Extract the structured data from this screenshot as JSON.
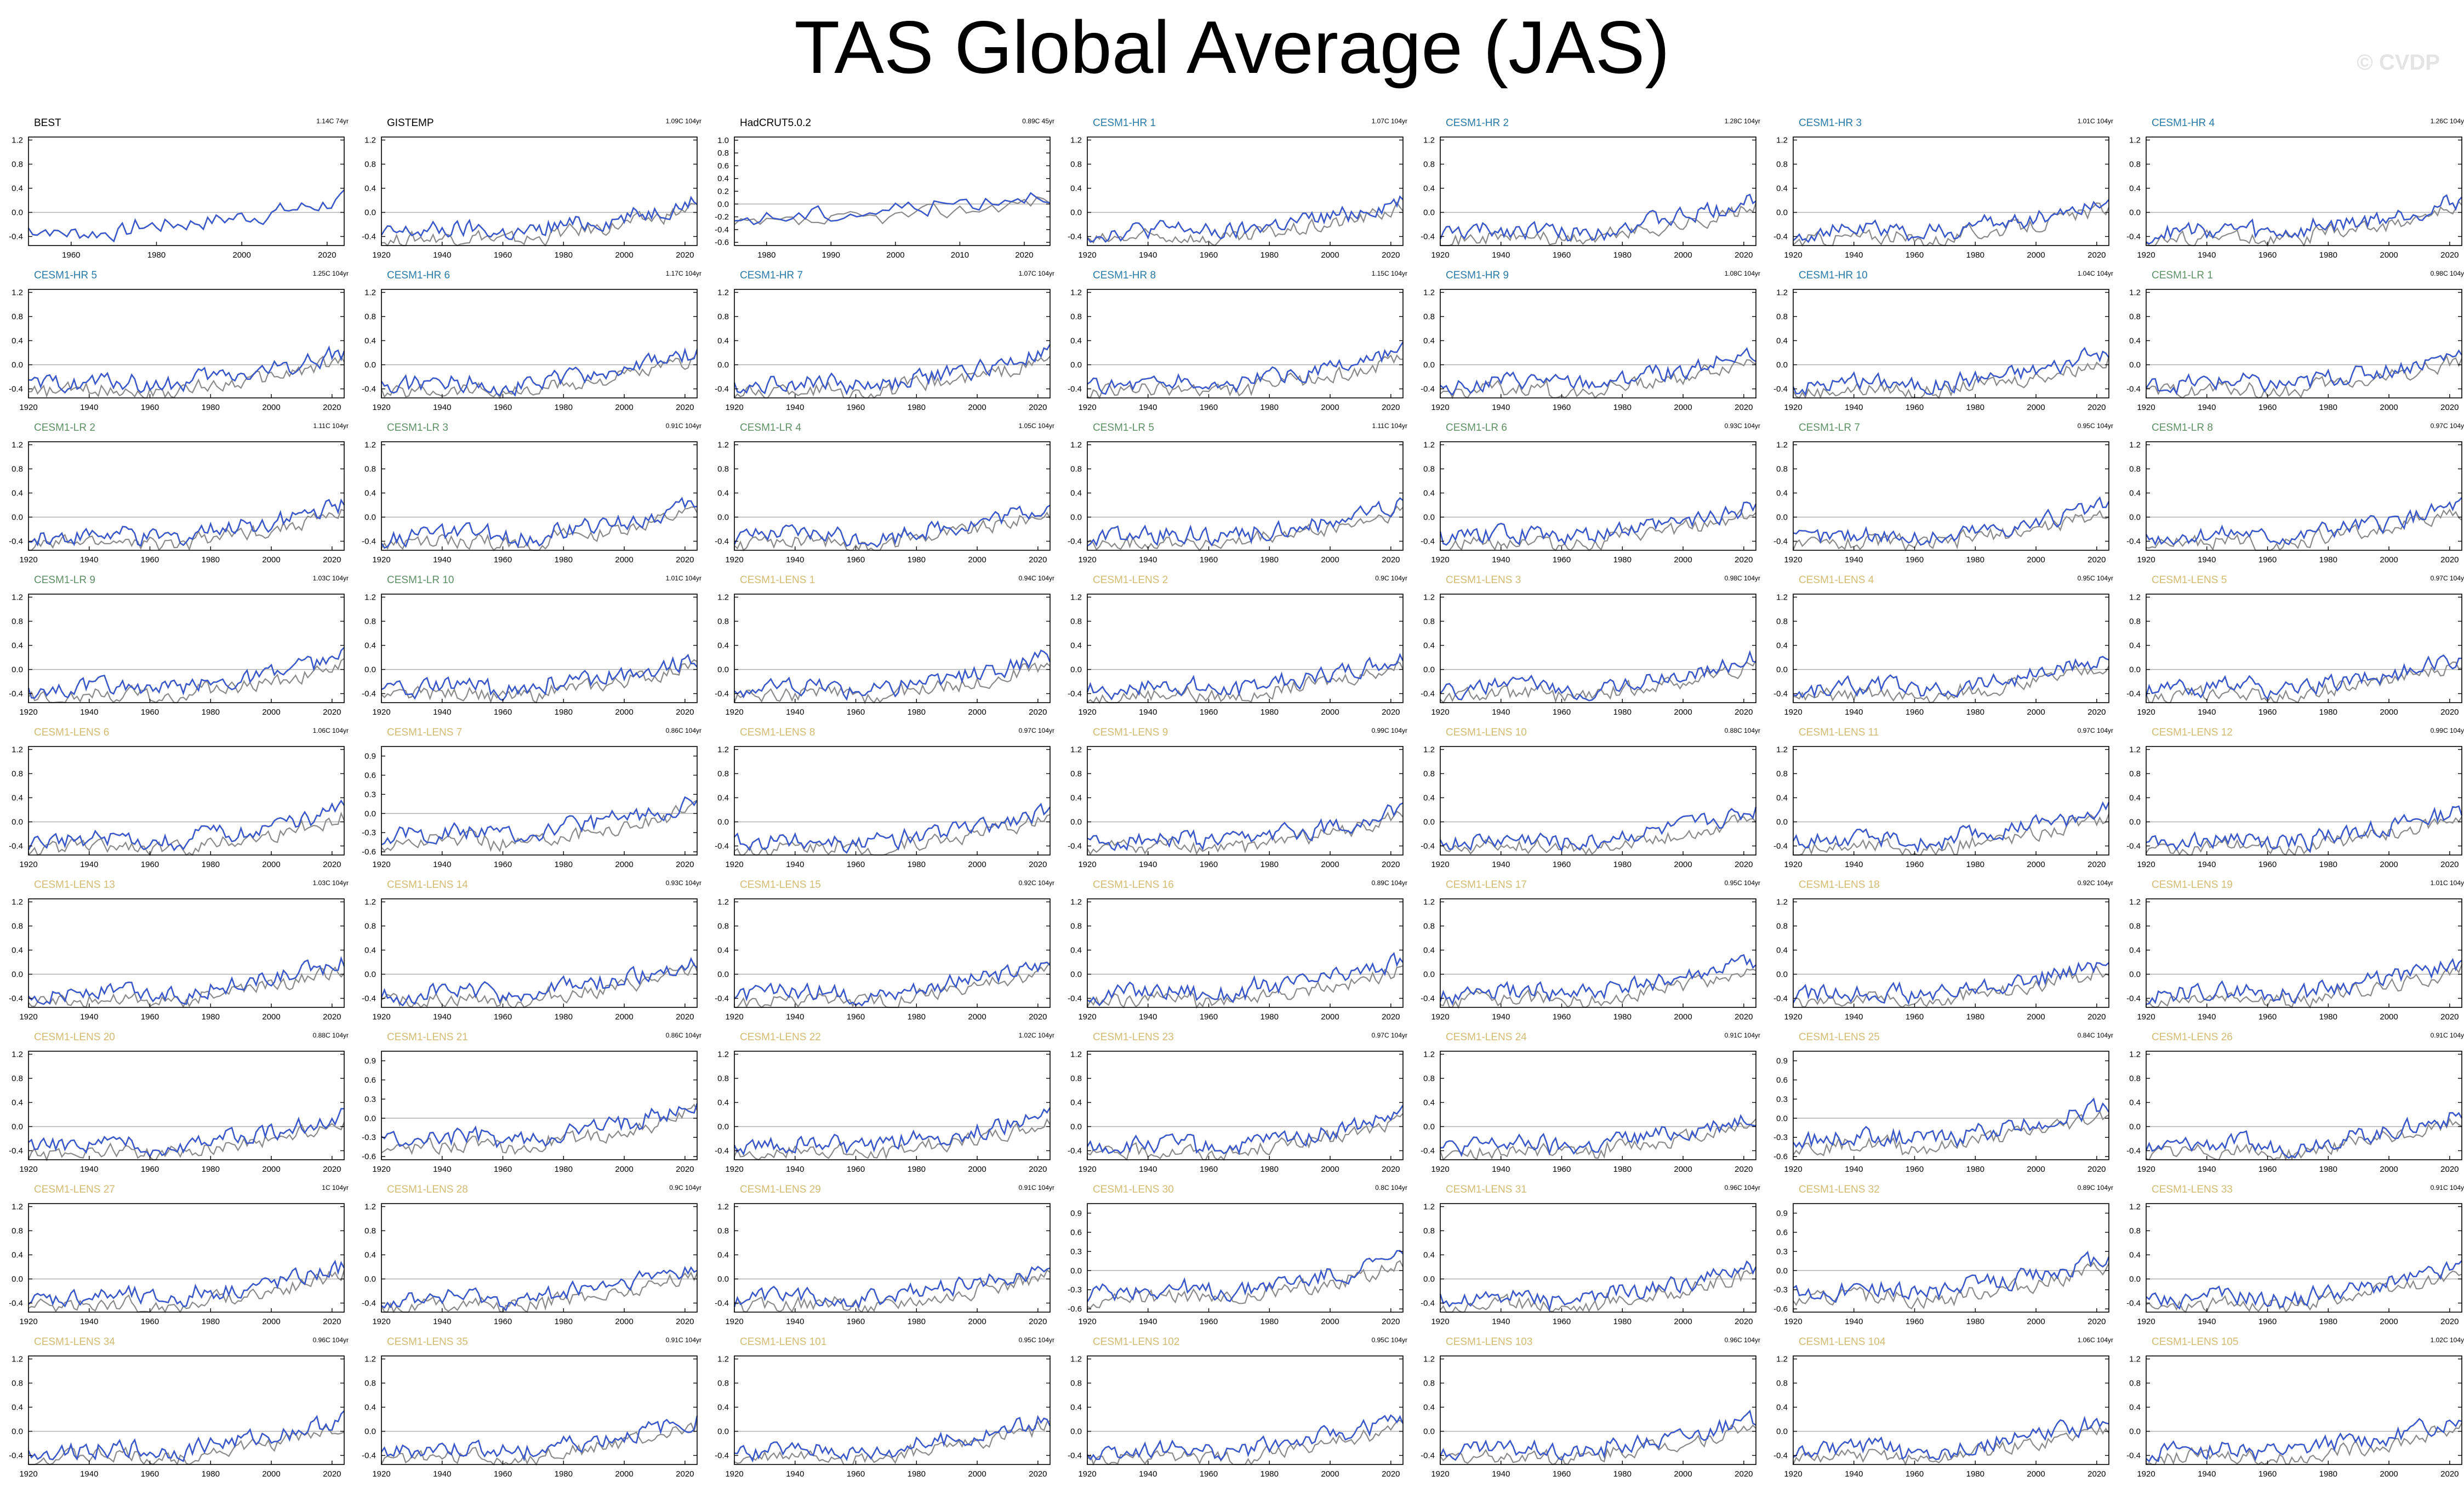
{
  "title": "TAS Global Average (JAS)",
  "watermark": "© CVDP",
  "colors": {
    "blue": "#3a57c9",
    "gray": "#8a8a8a",
    "hr": "#2a7aa8",
    "lr": "#5e8f66",
    "lens": "#d2bb72",
    "obs": "#000000"
  },
  "default_axes": {
    "x_ticks": [
      1920,
      1940,
      1960,
      1980,
      2000,
      2020
    ],
    "y_ticks": [
      -0.4,
      0.0,
      0.4,
      0.8,
      1.2
    ],
    "y_tick_labels": [
      "-0.4",
      "0.0",
      "0.4",
      "0.8",
      "1.2"
    ],
    "x_range": [
      1920,
      2024
    ],
    "y_range": [
      -0.55,
      1.25
    ]
  },
  "chart_data": [
    {
      "type": "line",
      "title": "BEST",
      "group": "obs",
      "trend": "1.14C 74yr",
      "x_ticks": [
        1960,
        1980,
        2000,
        2020
      ],
      "x_range": [
        1950,
        2024
      ],
      "start": 1950,
      "blue_only": true
    },
    {
      "type": "line",
      "title": "GISTEMP",
      "group": "obs",
      "trend": "1.09C 104yr"
    },
    {
      "type": "line",
      "title": "HadCRUT5.0.2",
      "group": "obs",
      "trend": "0.89C 45yr",
      "x_ticks": [
        1980,
        1990,
        2000,
        2010,
        2020
      ],
      "x_range": [
        1975,
        2024
      ],
      "y_ticks": [
        -0.6,
        -0.4,
        -0.2,
        0.0,
        0.2,
        0.4,
        0.6,
        0.8,
        1.0
      ],
      "y_tick_labels": [
        "-0.6",
        "-0.4",
        "-0.2",
        "0.0",
        "0.2",
        "0.4",
        "0.6",
        "0.8",
        "1.0"
      ],
      "y_range": [
        -0.65,
        1.05
      ],
      "start": 1975
    },
    {
      "type": "line",
      "title": "CESM1-HR 1",
      "group": "hr",
      "trend": "1.07C 104yr"
    },
    {
      "type": "line",
      "title": "CESM1-HR 2",
      "group": "hr",
      "trend": "1.28C 104yr"
    },
    {
      "type": "line",
      "title": "CESM1-HR 3",
      "group": "hr",
      "trend": "1.01C 104yr"
    },
    {
      "type": "line",
      "title": "CESM1-HR 4",
      "group": "hr",
      "trend": "1.26C 104yr"
    },
    {
      "type": "line",
      "title": "CESM1-HR 5",
      "group": "hr",
      "trend": "1.25C 104yr"
    },
    {
      "type": "line",
      "title": "CESM1-HR 6",
      "group": "hr",
      "trend": "1.17C 104yr"
    },
    {
      "type": "line",
      "title": "CESM1-HR 7",
      "group": "hr",
      "trend": "1.07C 104yr"
    },
    {
      "type": "line",
      "title": "CESM1-HR 8",
      "group": "hr",
      "trend": "1.15C 104yr"
    },
    {
      "type": "line",
      "title": "CESM1-HR 9",
      "group": "hr",
      "trend": "1.08C 104yr"
    },
    {
      "type": "line",
      "title": "CESM1-HR 10",
      "group": "hr",
      "trend": "1.04C 104yr"
    },
    {
      "type": "line",
      "title": "CESM1-LR 1",
      "group": "lr",
      "trend": "0.98C 104yr"
    },
    {
      "type": "line",
      "title": "CESM1-LR 2",
      "group": "lr",
      "trend": "1.11C 104yr"
    },
    {
      "type": "line",
      "title": "CESM1-LR 3",
      "group": "lr",
      "trend": "0.91C 104yr"
    },
    {
      "type": "line",
      "title": "CESM1-LR 4",
      "group": "lr",
      "trend": "1.05C 104yr"
    },
    {
      "type": "line",
      "title": "CESM1-LR 5",
      "group": "lr",
      "trend": "1.11C 104yr"
    },
    {
      "type": "line",
      "title": "CESM1-LR 6",
      "group": "lr",
      "trend": "0.93C 104yr"
    },
    {
      "type": "line",
      "title": "CESM1-LR 7",
      "group": "lr",
      "trend": "0.95C 104yr"
    },
    {
      "type": "line",
      "title": "CESM1-LR 8",
      "group": "lr",
      "trend": "0.97C 104yr"
    },
    {
      "type": "line",
      "title": "CESM1-LR 9",
      "group": "lr",
      "trend": "1.03C 104yr"
    },
    {
      "type": "line",
      "title": "CESM1-LR 10",
      "group": "lr",
      "trend": "1.01C 104yr"
    },
    {
      "type": "line",
      "title": "CESM1-LENS 1",
      "group": "lens",
      "trend": "0.94C 104yr"
    },
    {
      "type": "line",
      "title": "CESM1-LENS 2",
      "group": "lens",
      "trend": "0.9C 104yr"
    },
    {
      "type": "line",
      "title": "CESM1-LENS 3",
      "group": "lens",
      "trend": "0.98C 104yr"
    },
    {
      "type": "line",
      "title": "CESM1-LENS 4",
      "group": "lens",
      "trend": "0.95C 104yr"
    },
    {
      "type": "line",
      "title": "CESM1-LENS 5",
      "group": "lens",
      "trend": "0.97C 104yr"
    },
    {
      "type": "line",
      "title": "CESM1-LENS 6",
      "group": "lens",
      "trend": "1.06C 104yr"
    },
    {
      "type": "line",
      "title": "CESM1-LENS 7",
      "group": "lens",
      "trend": "0.86C 104yr",
      "y_ticks": [
        -0.6,
        -0.3,
        0.0,
        0.3,
        0.6,
        0.9
      ],
      "y_tick_labels": [
        "-0.6",
        "-0.3",
        "0.0",
        "0.3",
        "0.6",
        "0.9"
      ],
      "y_range": [
        -0.65,
        1.05
      ]
    },
    {
      "type": "line",
      "title": "CESM1-LENS 8",
      "group": "lens",
      "trend": "0.97C 104yr"
    },
    {
      "type": "line",
      "title": "CESM1-LENS 9",
      "group": "lens",
      "trend": "0.99C 104yr"
    },
    {
      "type": "line",
      "title": "CESM1-LENS 10",
      "group": "lens",
      "trend": "0.88C 104yr"
    },
    {
      "type": "line",
      "title": "CESM1-LENS 11",
      "group": "lens",
      "trend": "0.97C 104yr"
    },
    {
      "type": "line",
      "title": "CESM1-LENS 12",
      "group": "lens",
      "trend": "0.99C 104yr"
    },
    {
      "type": "line",
      "title": "CESM1-LENS 13",
      "group": "lens",
      "trend": "1.03C 104yr"
    },
    {
      "type": "line",
      "title": "CESM1-LENS 14",
      "group": "lens",
      "trend": "0.93C 104yr"
    },
    {
      "type": "line",
      "title": "CESM1-LENS 15",
      "group": "lens",
      "trend": "0.92C 104yr"
    },
    {
      "type": "line",
      "title": "CESM1-LENS 16",
      "group": "lens",
      "trend": "0.89C 104yr"
    },
    {
      "type": "line",
      "title": "CESM1-LENS 17",
      "group": "lens",
      "trend": "0.95C 104yr"
    },
    {
      "type": "line",
      "title": "CESM1-LENS 18",
      "group": "lens",
      "trend": "0.92C 104yr"
    },
    {
      "type": "line",
      "title": "CESM1-LENS 19",
      "group": "lens",
      "trend": "1.01C 104yr"
    },
    {
      "type": "line",
      "title": "CESM1-LENS 20",
      "group": "lens",
      "trend": "0.88C 104yr"
    },
    {
      "type": "line",
      "title": "CESM1-LENS 21",
      "group": "lens",
      "trend": "0.86C 104yr",
      "y_ticks": [
        -0.6,
        -0.3,
        0.0,
        0.3,
        0.6,
        0.9
      ],
      "y_tick_labels": [
        "-0.6",
        "-0.3",
        "0.0",
        "0.3",
        "0.6",
        "0.9"
      ],
      "y_range": [
        -0.65,
        1.05
      ]
    },
    {
      "type": "line",
      "title": "CESM1-LENS 22",
      "group": "lens",
      "trend": "1.02C 104yr"
    },
    {
      "type": "line",
      "title": "CESM1-LENS 23",
      "group": "lens",
      "trend": "0.97C 104yr"
    },
    {
      "type": "line",
      "title": "CESM1-LENS 24",
      "group": "lens",
      "trend": "0.91C 104yr"
    },
    {
      "type": "line",
      "title": "CESM1-LENS 25",
      "group": "lens",
      "trend": "0.84C 104yr",
      "y_ticks": [
        -0.6,
        -0.3,
        0.0,
        0.3,
        0.6,
        0.9
      ],
      "y_tick_labels": [
        "-0.6",
        "-0.3",
        "0.0",
        "0.3",
        "0.6",
        "0.9"
      ],
      "y_range": [
        -0.65,
        1.05
      ]
    },
    {
      "type": "line",
      "title": "CESM1-LENS 26",
      "group": "lens",
      "trend": "0.91C 104yr"
    },
    {
      "type": "line",
      "title": "CESM1-LENS 27",
      "group": "lens",
      "trend": "1C 104yr"
    },
    {
      "type": "line",
      "title": "CESM1-LENS 28",
      "group": "lens",
      "trend": "0.9C 104yr"
    },
    {
      "type": "line",
      "title": "CESM1-LENS 29",
      "group": "lens",
      "trend": "0.91C 104yr"
    },
    {
      "type": "line",
      "title": "CESM1-LENS 30",
      "group": "lens",
      "trend": "0.8C 104yr",
      "y_ticks": [
        -0.6,
        -0.3,
        0.0,
        0.3,
        0.6,
        0.9
      ],
      "y_tick_labels": [
        "-0.6",
        "-0.3",
        "0.0",
        "0.3",
        "0.6",
        "0.9"
      ],
      "y_range": [
        -0.65,
        1.05
      ]
    },
    {
      "type": "line",
      "title": "CESM1-LENS 31",
      "group": "lens",
      "trend": "0.96C 104yr"
    },
    {
      "type": "line",
      "title": "CESM1-LENS 32",
      "group": "lens",
      "trend": "0.89C 104yr",
      "y_ticks": [
        -0.6,
        -0.3,
        0.0,
        0.3,
        0.6,
        0.9
      ],
      "y_tick_labels": [
        "-0.6",
        "-0.3",
        "0.0",
        "0.3",
        "0.6",
        "0.9"
      ],
      "y_range": [
        -0.65,
        1.05
      ]
    },
    {
      "type": "line",
      "title": "CESM1-LENS 33",
      "group": "lens",
      "trend": "0.91C 104yr"
    },
    {
      "type": "line",
      "title": "CESM1-LENS 34",
      "group": "lens",
      "trend": "0.96C 104yr"
    },
    {
      "type": "line",
      "title": "CESM1-LENS 35",
      "group": "lens",
      "trend": "0.91C 104yr"
    },
    {
      "type": "line",
      "title": "CESM1-LENS 101",
      "group": "lens",
      "trend": "0.95C 104yr"
    },
    {
      "type": "line",
      "title": "CESM1-LENS 102",
      "group": "lens",
      "trend": "0.95C 104yr"
    },
    {
      "type": "line",
      "title": "CESM1-LENS 103",
      "group": "lens",
      "trend": "0.96C 104yr"
    },
    {
      "type": "line",
      "title": "CESM1-LENS 104",
      "group": "lens",
      "trend": "1.06C 104yr"
    },
    {
      "type": "line",
      "title": "CESM1-LENS 105",
      "group": "lens",
      "trend": "1.02C 104yr"
    }
  ]
}
